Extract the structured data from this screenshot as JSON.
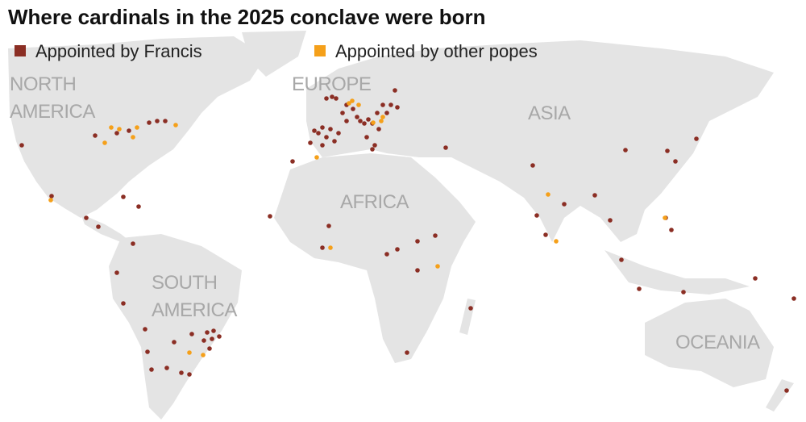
{
  "title": "Where cardinals in the 2025 conclave were born",
  "legend": [
    {
      "name": "Appointed by Francis",
      "color": "#8b2e24"
    },
    {
      "name": "Appointed by other popes",
      "color": "#f5a01a"
    }
  ],
  "regions": [
    "NORTH",
    "AMERICA",
    "EUROPE",
    "ASIA",
    "AFRICA",
    "SOUTH",
    "AMERICA",
    "OCEANIA"
  ]
}
